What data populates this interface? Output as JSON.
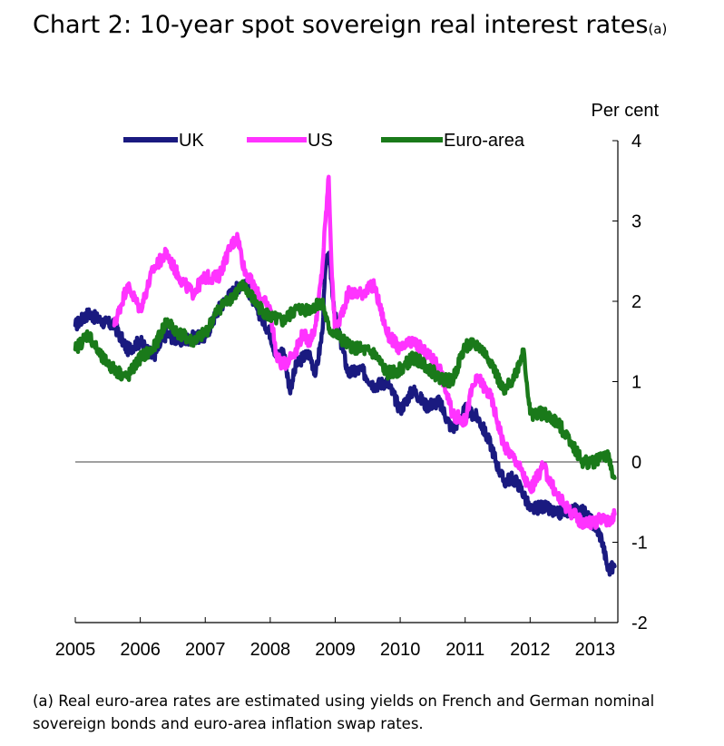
{
  "title": {
    "text": "Chart 2: 10-year spot sovereign real interest rates",
    "superscript": "(a)"
  },
  "footnote": "(a) Real euro-area rates are estimated using yields on French and German nominal sovereign bonds and euro-area inflation swap rates.",
  "chart_data": {
    "type": "line",
    "title": "Chart 2: 10-year spot sovereign real interest rates",
    "ylabel": "Per cent",
    "ylabel_position": "top-right",
    "y_axis_side": "right",
    "xlabel": "",
    "x_tick_labels": [
      "2005",
      "2006",
      "2007",
      "2008",
      "2009",
      "2010",
      "2011",
      "2012",
      "2013"
    ],
    "y_tick_labels": [
      "4",
      "3",
      "2",
      "1",
      "0",
      "-1",
      "-2"
    ],
    "xlim": [
      2005.0,
      2013.35
    ],
    "ylim": [
      -2,
      4
    ],
    "zero_line": true,
    "grid": false,
    "legend_position": "top",
    "series": [
      {
        "name": "UK",
        "color": "#1a1a80",
        "x": [
          2005.0,
          2005.2,
          2005.4,
          2005.6,
          2005.8,
          2006.0,
          2006.2,
          2006.4,
          2006.6,
          2006.8,
          2007.0,
          2007.2,
          2007.4,
          2007.6,
          2007.8,
          2008.0,
          2008.1,
          2008.2,
          2008.3,
          2008.4,
          2008.5,
          2008.6,
          2008.7,
          2008.8,
          2008.85,
          2008.9,
          2009.0,
          2009.2,
          2009.4,
          2009.6,
          2009.8,
          2010.0,
          2010.2,
          2010.4,
          2010.6,
          2010.8,
          2011.0,
          2011.2,
          2011.4,
          2011.5,
          2011.6,
          2011.7,
          2011.8,
          2011.9,
          2012.0,
          2012.2,
          2012.4,
          2012.6,
          2012.8,
          2013.0,
          2013.1,
          2013.2,
          2013.3
        ],
        "values": [
          1.7,
          1.85,
          1.75,
          1.7,
          1.4,
          1.5,
          1.3,
          1.6,
          1.5,
          1.55,
          1.55,
          1.9,
          2.1,
          2.25,
          1.9,
          1.6,
          1.3,
          1.4,
          0.9,
          1.2,
          1.3,
          1.35,
          1.1,
          1.6,
          2.4,
          2.6,
          1.8,
          1.1,
          1.15,
          0.95,
          1.0,
          0.65,
          0.9,
          0.7,
          0.75,
          0.4,
          0.65,
          0.55,
          0.2,
          -0.05,
          -0.25,
          -0.2,
          -0.25,
          -0.4,
          -0.6,
          -0.55,
          -0.65,
          -0.6,
          -0.6,
          -0.8,
          -0.95,
          -1.35,
          -1.3
        ]
      },
      {
        "name": "US",
        "color": "#ff33ff",
        "x": [
          2005.6,
          2005.8,
          2006.0,
          2006.2,
          2006.4,
          2006.6,
          2006.8,
          2007.0,
          2007.2,
          2007.4,
          2007.5,
          2007.6,
          2007.8,
          2008.0,
          2008.1,
          2008.2,
          2008.3,
          2008.4,
          2008.5,
          2008.6,
          2008.7,
          2008.8,
          2008.85,
          2008.9,
          2008.95,
          2009.0,
          2009.2,
          2009.4,
          2009.6,
          2009.8,
          2010.0,
          2010.2,
          2010.4,
          2010.6,
          2010.8,
          2011.0,
          2011.1,
          2011.2,
          2011.4,
          2011.6,
          2011.8,
          2012.0,
          2012.2,
          2012.4,
          2012.6,
          2012.8,
          2013.0,
          2013.1,
          2013.2,
          2013.3
        ],
        "values": [
          1.7,
          2.2,
          1.9,
          2.4,
          2.6,
          2.3,
          2.1,
          2.3,
          2.3,
          2.7,
          2.8,
          2.4,
          2.1,
          1.9,
          1.3,
          1.2,
          1.3,
          1.4,
          1.6,
          1.5,
          1.7,
          2.4,
          3.0,
          3.55,
          2.3,
          1.6,
          2.1,
          2.1,
          2.2,
          1.6,
          1.4,
          1.5,
          1.35,
          1.2,
          0.6,
          0.5,
          0.9,
          1.05,
          0.8,
          0.2,
          0.0,
          -0.35,
          -0.05,
          -0.4,
          -0.6,
          -0.75,
          -0.75,
          -0.7,
          -0.75,
          -0.65
        ]
      },
      {
        "name": "Euro-area",
        "color": "#1a7a1a",
        "x": [
          2005.0,
          2005.2,
          2005.4,
          2005.6,
          2005.8,
          2006.0,
          2006.2,
          2006.4,
          2006.6,
          2006.8,
          2007.0,
          2007.2,
          2007.4,
          2007.6,
          2007.8,
          2008.0,
          2008.2,
          2008.4,
          2008.6,
          2008.8,
          2008.9,
          2009.0,
          2009.2,
          2009.4,
          2009.6,
          2009.8,
          2010.0,
          2010.2,
          2010.4,
          2010.6,
          2010.8,
          2011.0,
          2011.2,
          2011.4,
          2011.6,
          2011.8,
          2011.9,
          2012.0,
          2012.2,
          2012.4,
          2012.6,
          2012.8,
          2013.0,
          2013.1,
          2013.2,
          2013.3
        ],
        "values": [
          1.4,
          1.6,
          1.3,
          1.15,
          1.05,
          1.3,
          1.4,
          1.75,
          1.6,
          1.5,
          1.6,
          1.9,
          2.05,
          2.2,
          1.95,
          1.8,
          1.75,
          1.9,
          1.9,
          2.0,
          1.65,
          1.6,
          1.45,
          1.4,
          1.35,
          1.1,
          1.15,
          1.3,
          1.2,
          1.05,
          1.0,
          1.45,
          1.45,
          1.25,
          0.85,
          1.15,
          1.4,
          0.6,
          0.6,
          0.5,
          0.3,
          0.0,
          0.0,
          0.1,
          0.05,
          -0.2
        ]
      }
    ]
  }
}
